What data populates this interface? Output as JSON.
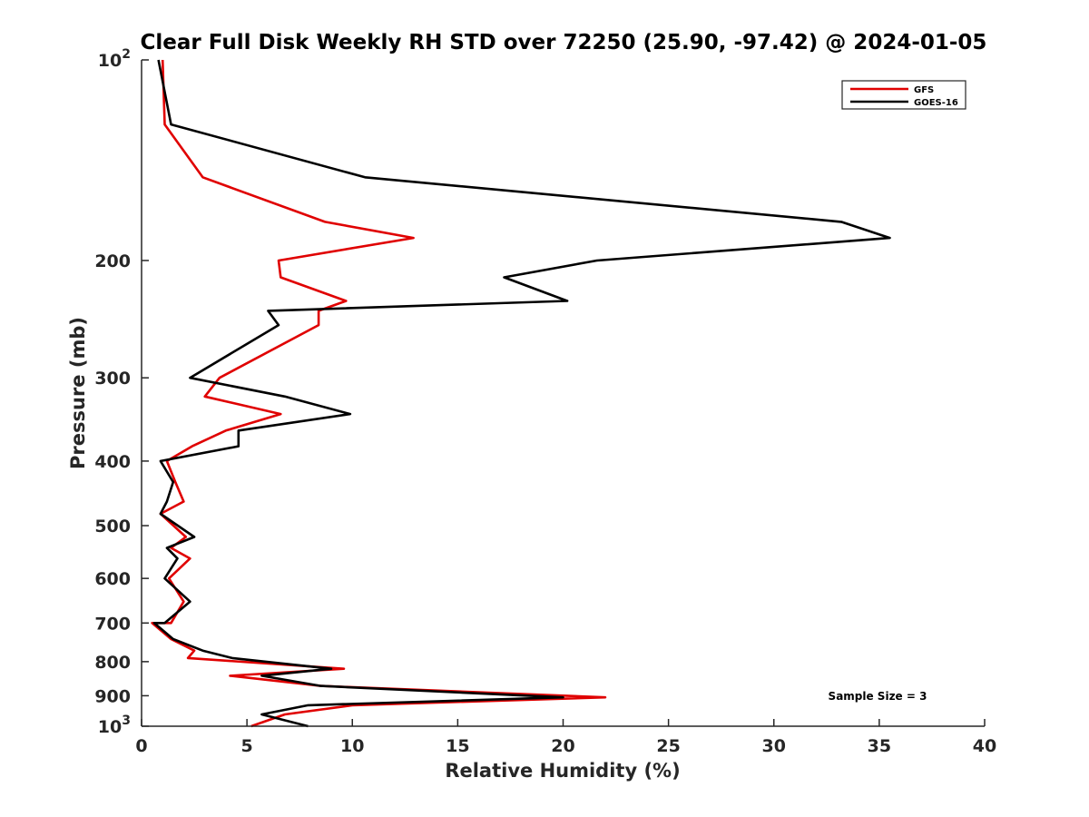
{
  "chart_data": {
    "type": "line",
    "title": "Clear Full Disk Weekly RH STD over 72250 (25.90, -97.42) @ 2024-01-05",
    "xlabel": "Relative Humidity (%)",
    "ylabel": "Pressure (mb)",
    "xlim": [
      0,
      40
    ],
    "ylim": [
      100,
      1000
    ],
    "y_scale": "log",
    "y_reversed": true,
    "x_ticks": [
      0,
      5,
      10,
      15,
      20,
      25,
      30,
      35,
      40
    ],
    "y_ticks": [
      {
        "value": 100,
        "label": "10",
        "sup": "2"
      },
      {
        "value": 200,
        "label": "200",
        "sup": ""
      },
      {
        "value": 300,
        "label": "300",
        "sup": ""
      },
      {
        "value": 400,
        "label": "400",
        "sup": ""
      },
      {
        "value": 500,
        "label": "500",
        "sup": ""
      },
      {
        "value": 600,
        "label": "600",
        "sup": ""
      },
      {
        "value": 700,
        "label": "700",
        "sup": ""
      },
      {
        "value": 800,
        "label": "800",
        "sup": ""
      },
      {
        "value": 900,
        "label": "900",
        "sup": ""
      },
      {
        "value": 1000,
        "label": "10",
        "sup": "3"
      }
    ],
    "grid": false,
    "legend_position": "top-right",
    "annotation": "Sample Size = 3",
    "series": [
      {
        "name": "GFS",
        "color": "#e00000",
        "points": [
          [
            1.0,
            100
          ],
          [
            1.1,
            125
          ],
          [
            2.9,
            150
          ],
          [
            8.7,
            175
          ],
          [
            12.9,
            185
          ],
          [
            6.5,
            200
          ],
          [
            6.6,
            212
          ],
          [
            9.7,
            230
          ],
          [
            8.4,
            238
          ],
          [
            8.4,
            250
          ],
          [
            3.7,
            300
          ],
          [
            3.0,
            320
          ],
          [
            6.6,
            340
          ],
          [
            4.0,
            360
          ],
          [
            2.4,
            380
          ],
          [
            1.2,
            400
          ],
          [
            1.6,
            430
          ],
          [
            2.0,
            460
          ],
          [
            0.9,
            480
          ],
          [
            2.1,
            520
          ],
          [
            1.4,
            540
          ],
          [
            2.3,
            560
          ],
          [
            1.3,
            600
          ],
          [
            2.0,
            650
          ],
          [
            1.4,
            700
          ],
          [
            0.5,
            700
          ],
          [
            1.4,
            740
          ],
          [
            2.5,
            770
          ],
          [
            2.2,
            790
          ],
          [
            9.6,
            820
          ],
          [
            4.2,
            840
          ],
          [
            8.5,
            870
          ],
          [
            22.0,
            905
          ],
          [
            10.0,
            930
          ],
          [
            6.8,
            960
          ],
          [
            5.2,
            1000
          ]
        ]
      },
      {
        "name": "GOES-16",
        "color": "#000000",
        "points": [
          [
            0.8,
            100
          ],
          [
            1.4,
            125
          ],
          [
            10.6,
            150
          ],
          [
            33.2,
            175
          ],
          [
            35.5,
            185
          ],
          [
            21.6,
            200
          ],
          [
            17.2,
            212
          ],
          [
            20.2,
            230
          ],
          [
            6.0,
            238
          ],
          [
            6.5,
            250
          ],
          [
            2.3,
            300
          ],
          [
            6.8,
            320
          ],
          [
            9.9,
            340
          ],
          [
            4.6,
            360
          ],
          [
            4.6,
            380
          ],
          [
            0.9,
            400
          ],
          [
            1.5,
            430
          ],
          [
            1.2,
            460
          ],
          [
            0.9,
            480
          ],
          [
            2.5,
            520
          ],
          [
            1.2,
            540
          ],
          [
            1.7,
            560
          ],
          [
            1.1,
            600
          ],
          [
            2.3,
            650
          ],
          [
            1.1,
            700
          ],
          [
            0.6,
            700
          ],
          [
            1.5,
            740
          ],
          [
            2.9,
            770
          ],
          [
            4.3,
            790
          ],
          [
            9.0,
            820
          ],
          [
            5.7,
            840
          ],
          [
            8.5,
            870
          ],
          [
            20.0,
            905
          ],
          [
            7.9,
            930
          ],
          [
            5.7,
            960
          ],
          [
            7.9,
            1000
          ]
        ]
      }
    ]
  }
}
